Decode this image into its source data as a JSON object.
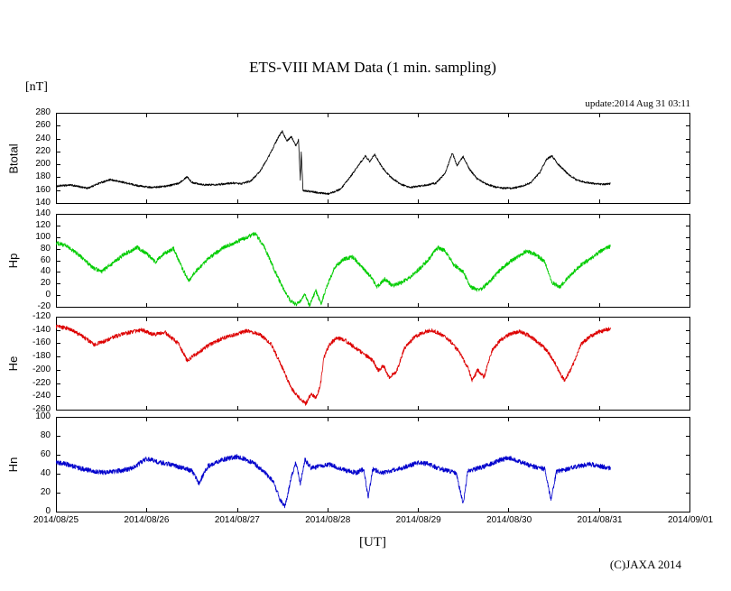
{
  "title": "ETS-VIII MAM Data (1 min. sampling)",
  "y_units_label": "[nT]",
  "update_text": "update:2014 Aug 31 03:11",
  "x_axis_title": "[UT]",
  "copyright": "(C)JAXA 2014",
  "chart_data": {
    "type": "line",
    "title": "ETS-VIII MAM Data (1 min. sampling)",
    "ylabel_units": "nT",
    "x_axis": {
      "labels": [
        "2014/08/25",
        "2014/08/26",
        "2014/08/27",
        "2014/08/28",
        "2014/08/29",
        "2014/08/30",
        "2014/08/31",
        "2014/09/01"
      ],
      "span_days": [
        0,
        7
      ]
    },
    "panels": [
      {
        "name": "Btotal",
        "color": "#000000",
        "ylim": [
          140,
          280
        ],
        "yticks": [
          280,
          260,
          240,
          220,
          200,
          180,
          160,
          140
        ],
        "noise_amp": 1.5,
        "points": [
          [
            0,
            166
          ],
          [
            0.15,
            168
          ],
          [
            0.35,
            163
          ],
          [
            0.5,
            172
          ],
          [
            0.6,
            176
          ],
          [
            0.75,
            172
          ],
          [
            0.9,
            167
          ],
          [
            1.05,
            164
          ],
          [
            1.2,
            166
          ],
          [
            1.35,
            170
          ],
          [
            1.45,
            181
          ],
          [
            1.5,
            172
          ],
          [
            1.65,
            168
          ],
          [
            1.8,
            169
          ],
          [
            1.95,
            171
          ],
          [
            2.05,
            170
          ],
          [
            2.15,
            174
          ],
          [
            2.25,
            188
          ],
          [
            2.35,
            212
          ],
          [
            2.45,
            240
          ],
          [
            2.5,
            252
          ],
          [
            2.55,
            236
          ],
          [
            2.6,
            243
          ],
          [
            2.65,
            229
          ],
          [
            2.68,
            238
          ],
          [
            2.7,
            176
          ],
          [
            2.71,
            220
          ],
          [
            2.73,
            160
          ],
          [
            2.8,
            158
          ],
          [
            2.9,
            156
          ],
          [
            3.0,
            154
          ],
          [
            3.05,
            156
          ],
          [
            3.15,
            162
          ],
          [
            3.25,
            180
          ],
          [
            3.35,
            200
          ],
          [
            3.42,
            213
          ],
          [
            3.47,
            204
          ],
          [
            3.52,
            216
          ],
          [
            3.6,
            196
          ],
          [
            3.7,
            180
          ],
          [
            3.8,
            170
          ],
          [
            3.9,
            164
          ],
          [
            4.0,
            166
          ],
          [
            4.1,
            168
          ],
          [
            4.2,
            171
          ],
          [
            4.3,
            186
          ],
          [
            4.38,
            218
          ],
          [
            4.43,
            198
          ],
          [
            4.5,
            212
          ],
          [
            4.57,
            192
          ],
          [
            4.65,
            178
          ],
          [
            4.75,
            170
          ],
          [
            4.85,
            165
          ],
          [
            4.95,
            163
          ],
          [
            5.05,
            163
          ],
          [
            5.15,
            166
          ],
          [
            5.25,
            172
          ],
          [
            5.35,
            188
          ],
          [
            5.42,
            208
          ],
          [
            5.48,
            213
          ],
          [
            5.55,
            200
          ],
          [
            5.65,
            186
          ],
          [
            5.75,
            176
          ],
          [
            5.85,
            172
          ],
          [
            5.95,
            170
          ],
          [
            6.05,
            169
          ],
          [
            6.13,
            170
          ]
        ]
      },
      {
        "name": "Hp",
        "color": "#00cc00",
        "ylim": [
          -20,
          140
        ],
        "yticks": [
          140,
          120,
          100,
          80,
          60,
          40,
          20,
          0,
          -20
        ],
        "noise_amp": 3.5,
        "points": [
          [
            0,
            90
          ],
          [
            0.1,
            86
          ],
          [
            0.25,
            70
          ],
          [
            0.4,
            48
          ],
          [
            0.5,
            40
          ],
          [
            0.6,
            52
          ],
          [
            0.75,
            70
          ],
          [
            0.9,
            82
          ],
          [
            1.0,
            72
          ],
          [
            1.1,
            57
          ],
          [
            1.2,
            72
          ],
          [
            1.3,
            80
          ],
          [
            1.4,
            45
          ],
          [
            1.47,
            25
          ],
          [
            1.55,
            42
          ],
          [
            1.7,
            65
          ],
          [
            1.85,
            82
          ],
          [
            2.0,
            92
          ],
          [
            2.1,
            99
          ],
          [
            2.2,
            106
          ],
          [
            2.3,
            84
          ],
          [
            2.4,
            48
          ],
          [
            2.5,
            15
          ],
          [
            2.58,
            -8
          ],
          [
            2.65,
            -16
          ],
          [
            2.7,
            -10
          ],
          [
            2.75,
            2
          ],
          [
            2.8,
            -18
          ],
          [
            2.87,
            8
          ],
          [
            2.93,
            -15
          ],
          [
            3.0,
            18
          ],
          [
            3.08,
            48
          ],
          [
            3.18,
            62
          ],
          [
            3.28,
            66
          ],
          [
            3.38,
            48
          ],
          [
            3.48,
            32
          ],
          [
            3.55,
            14
          ],
          [
            3.63,
            28
          ],
          [
            3.72,
            16
          ],
          [
            3.82,
            22
          ],
          [
            3.92,
            32
          ],
          [
            4.02,
            46
          ],
          [
            4.12,
            62
          ],
          [
            4.22,
            82
          ],
          [
            4.3,
            76
          ],
          [
            4.4,
            52
          ],
          [
            4.5,
            40
          ],
          [
            4.58,
            14
          ],
          [
            4.68,
            8
          ],
          [
            4.8,
            24
          ],
          [
            4.9,
            42
          ],
          [
            5.0,
            56
          ],
          [
            5.1,
            66
          ],
          [
            5.2,
            76
          ],
          [
            5.3,
            70
          ],
          [
            5.4,
            58
          ],
          [
            5.48,
            22
          ],
          [
            5.57,
            14
          ],
          [
            5.68,
            34
          ],
          [
            5.8,
            52
          ],
          [
            5.92,
            64
          ],
          [
            6.02,
            76
          ],
          [
            6.13,
            84
          ]
        ]
      },
      {
        "name": "He",
        "color": "#dd0000",
        "ylim": [
          -260,
          -120
        ],
        "yticks": [
          -120,
          -140,
          -160,
          -180,
          -200,
          -220,
          -240,
          -260
        ],
        "noise_amp": 3.0,
        "points": [
          [
            0,
            -135
          ],
          [
            0.12,
            -137
          ],
          [
            0.28,
            -148
          ],
          [
            0.42,
            -162
          ],
          [
            0.52,
            -158
          ],
          [
            0.65,
            -150
          ],
          [
            0.8,
            -144
          ],
          [
            0.95,
            -140
          ],
          [
            1.08,
            -147
          ],
          [
            1.2,
            -143
          ],
          [
            1.35,
            -160
          ],
          [
            1.45,
            -186
          ],
          [
            1.55,
            -176
          ],
          [
            1.7,
            -162
          ],
          [
            1.85,
            -152
          ],
          [
            2.0,
            -146
          ],
          [
            2.12,
            -141
          ],
          [
            2.25,
            -146
          ],
          [
            2.38,
            -162
          ],
          [
            2.5,
            -196
          ],
          [
            2.6,
            -228
          ],
          [
            2.7,
            -244
          ],
          [
            2.76,
            -251
          ],
          [
            2.82,
            -236
          ],
          [
            2.87,
            -243
          ],
          [
            2.92,
            -225
          ],
          [
            2.96,
            -182
          ],
          [
            3.02,
            -162
          ],
          [
            3.1,
            -152
          ],
          [
            3.2,
            -156
          ],
          [
            3.3,
            -166
          ],
          [
            3.4,
            -176
          ],
          [
            3.5,
            -186
          ],
          [
            3.56,
            -201
          ],
          [
            3.62,
            -194
          ],
          [
            3.68,
            -211
          ],
          [
            3.76,
            -204
          ],
          [
            3.85,
            -168
          ],
          [
            3.95,
            -152
          ],
          [
            4.05,
            -144
          ],
          [
            4.15,
            -140
          ],
          [
            4.25,
            -146
          ],
          [
            4.35,
            -156
          ],
          [
            4.45,
            -172
          ],
          [
            4.55,
            -196
          ],
          [
            4.6,
            -216
          ],
          [
            4.66,
            -200
          ],
          [
            4.73,
            -211
          ],
          [
            4.82,
            -170
          ],
          [
            4.92,
            -154
          ],
          [
            5.02,
            -146
          ],
          [
            5.12,
            -142
          ],
          [
            5.22,
            -148
          ],
          [
            5.32,
            -158
          ],
          [
            5.42,
            -170
          ],
          [
            5.5,
            -186
          ],
          [
            5.57,
            -206
          ],
          [
            5.62,
            -216
          ],
          [
            5.7,
            -196
          ],
          [
            5.8,
            -162
          ],
          [
            5.9,
            -150
          ],
          [
            6.0,
            -143
          ],
          [
            6.13,
            -138
          ]
        ]
      },
      {
        "name": "Hn",
        "color": "#0000cc",
        "ylim": [
          0,
          100
        ],
        "yticks": [
          100,
          80,
          60,
          40,
          20,
          0
        ],
        "noise_amp": 2.5,
        "points": [
          [
            0,
            52
          ],
          [
            0.12,
            50
          ],
          [
            0.25,
            46
          ],
          [
            0.4,
            43
          ],
          [
            0.55,
            41
          ],
          [
            0.7,
            43
          ],
          [
            0.85,
            46
          ],
          [
            1.0,
            56
          ],
          [
            1.1,
            53
          ],
          [
            1.25,
            50
          ],
          [
            1.4,
            46
          ],
          [
            1.5,
            43
          ],
          [
            1.58,
            30
          ],
          [
            1.68,
            48
          ],
          [
            1.85,
            55
          ],
          [
            2.0,
            58
          ],
          [
            2.1,
            55
          ],
          [
            2.2,
            50
          ],
          [
            2.3,
            42
          ],
          [
            2.4,
            32
          ],
          [
            2.48,
            12
          ],
          [
            2.53,
            5
          ],
          [
            2.6,
            36
          ],
          [
            2.65,
            52
          ],
          [
            2.7,
            30
          ],
          [
            2.75,
            55
          ],
          [
            2.82,
            46
          ],
          [
            2.92,
            48
          ],
          [
            3.02,
            50
          ],
          [
            3.12,
            46
          ],
          [
            3.22,
            43
          ],
          [
            3.32,
            41
          ],
          [
            3.4,
            45
          ],
          [
            3.45,
            15
          ],
          [
            3.5,
            45
          ],
          [
            3.6,
            41
          ],
          [
            3.7,
            43
          ],
          [
            3.82,
            46
          ],
          [
            3.92,
            49
          ],
          [
            4.02,
            52
          ],
          [
            4.12,
            50
          ],
          [
            4.22,
            46
          ],
          [
            4.32,
            43
          ],
          [
            4.42,
            41
          ],
          [
            4.5,
            8
          ],
          [
            4.55,
            43
          ],
          [
            4.68,
            46
          ],
          [
            4.8,
            50
          ],
          [
            4.9,
            54
          ],
          [
            5.0,
            57
          ],
          [
            5.1,
            53
          ],
          [
            5.2,
            50
          ],
          [
            5.3,
            47
          ],
          [
            5.4,
            45
          ],
          [
            5.47,
            12
          ],
          [
            5.53,
            42
          ],
          [
            5.65,
            45
          ],
          [
            5.78,
            48
          ],
          [
            5.9,
            50
          ],
          [
            6.0,
            48
          ],
          [
            6.13,
            46
          ]
        ]
      }
    ]
  }
}
